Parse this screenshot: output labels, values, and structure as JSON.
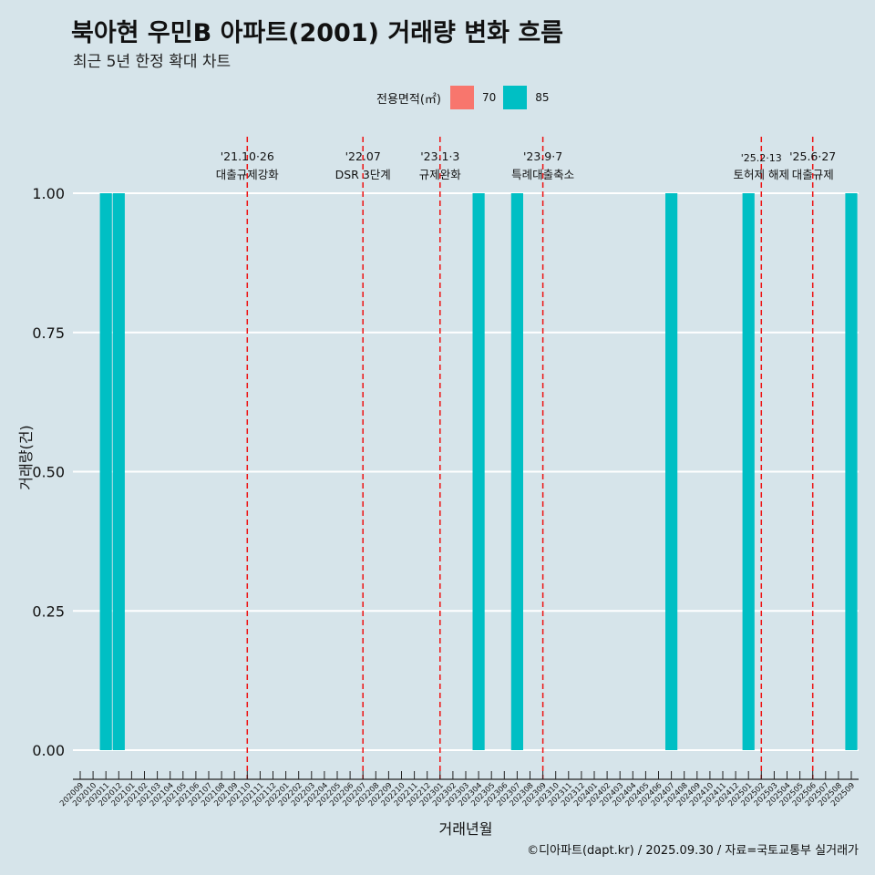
{
  "header": {
    "title": "북아현 우민B 아파트(2001) 거래량 변화 흐름",
    "subtitle": "최근 5년 한정 확대 차트"
  },
  "legend": {
    "title": "전용면적(㎡)",
    "items": [
      {
        "label": "70",
        "color": "#f8766d"
      },
      {
        "label": "85",
        "color": "#00bfc4"
      }
    ]
  },
  "caption": "©디아파트(dapt.kr) / 2025.09.30 / 자료=국토교통부 실거래가",
  "chart_data": {
    "type": "bar",
    "title": "북아현 우민B 아파트(2001) 거래량 변화 흐름",
    "xlabel": "거래년월",
    "ylabel": "거래량(건)",
    "ylim": [
      0,
      1
    ],
    "yticks": [
      "0.00",
      "0.25",
      "0.50",
      "0.75",
      "1.00"
    ],
    "grid": true,
    "legend_position": "top",
    "categories": [
      "202009",
      "202010",
      "202011",
      "202012",
      "202101",
      "202102",
      "202103",
      "202104",
      "202105",
      "202106",
      "202107",
      "202108",
      "202109",
      "202110",
      "202111",
      "202112",
      "202201",
      "202202",
      "202203",
      "202204",
      "202205",
      "202206",
      "202207",
      "202208",
      "202209",
      "202210",
      "202211",
      "202212",
      "202301",
      "202302",
      "202303",
      "202304",
      "202305",
      "202306",
      "202307",
      "202308",
      "202309",
      "202310",
      "202311",
      "202312",
      "202401",
      "202402",
      "202403",
      "202404",
      "202405",
      "202406",
      "202407",
      "202408",
      "202409",
      "202410",
      "202411",
      "202412",
      "202501",
      "202502",
      "202503",
      "202504",
      "202505",
      "202506",
      "202507",
      "202508",
      "202509"
    ],
    "series": [
      {
        "name": "70",
        "color": "#f8766d",
        "values": [
          0,
          0,
          0,
          0,
          0,
          0,
          0,
          0,
          0,
          0,
          0,
          0,
          0,
          0,
          0,
          0,
          0,
          0,
          0,
          0,
          0,
          0,
          0,
          0,
          0,
          0,
          0,
          0,
          0,
          0,
          0,
          0,
          0,
          0,
          0,
          0,
          0,
          0,
          0,
          0,
          0,
          0,
          0,
          0,
          0,
          0,
          0,
          0,
          0,
          0,
          0,
          0,
          0,
          0,
          0,
          0,
          0,
          0,
          0,
          0,
          0
        ]
      },
      {
        "name": "85",
        "color": "#00bfc4",
        "values": [
          0,
          0,
          1,
          1,
          0,
          0,
          0,
          0,
          0,
          0,
          0,
          0,
          0,
          0,
          0,
          0,
          0,
          0,
          0,
          0,
          0,
          0,
          0,
          0,
          0,
          0,
          0,
          0,
          0,
          0,
          0,
          1,
          0,
          0,
          1,
          0,
          0,
          0,
          0,
          0,
          0,
          0,
          0,
          0,
          0,
          0,
          1,
          0,
          0,
          0,
          0,
          0,
          1,
          0,
          0,
          0,
          0,
          0,
          0,
          0,
          1
        ]
      }
    ],
    "events": [
      {
        "month": "202110",
        "line1": "'21.10·26",
        "line2": "대출규제강화"
      },
      {
        "month": "202207",
        "line1": "'22.07",
        "line2": "DSR 3단계"
      },
      {
        "month": "202301",
        "line1": "'23.1·3",
        "line2": "규제완화"
      },
      {
        "month": "202309",
        "line1": "'23.9·7",
        "line2": "특례대출축소"
      },
      {
        "month": "202502",
        "line1": "'25.2·13",
        "line2": "토허제 해제"
      },
      {
        "month": "202506",
        "line1": "'25.6·27",
        "line2": "대출규제"
      }
    ]
  }
}
